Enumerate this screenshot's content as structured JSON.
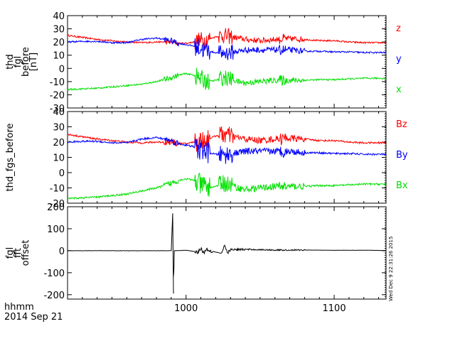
{
  "colors": {
    "z": "#ff0000",
    "y": "#0000ff",
    "x": "#00e000",
    "axis": "#000000"
  },
  "footer": {
    "xunit": "hhmm",
    "date": "2014 Sep 21"
  },
  "side_stamp": "Wed Dec  9 22:31:26 2015",
  "chart_data": [
    {
      "type": "line",
      "ylabel_lines": [
        "thd",
        "fgl",
        "before",
        "[nT]"
      ],
      "ylim": [
        -30,
        40
      ],
      "yticks": [
        -30,
        -20,
        -10,
        0,
        10,
        20,
        30,
        40
      ],
      "yticklabels": [
        "-30",
        "-20",
        "-10",
        "0",
        "10",
        "20",
        "30",
        "40"
      ],
      "xlim": [
        920,
        1135
      ],
      "series": [
        {
          "name": "z",
          "color": "#ff0000",
          "x": [
            920,
            930,
            940,
            950,
            960,
            970,
            980,
            990,
            995,
            1000,
            1005,
            1010,
            1015,
            1020,
            1025,
            1030,
            1035,
            1040,
            1050,
            1060,
            1070,
            1080,
            1090,
            1100,
            1110,
            1120,
            1135
          ],
          "y": [
            25,
            23.5,
            22,
            21,
            20,
            19.5,
            20,
            20,
            19,
            19,
            20,
            21,
            22,
            24,
            25,
            24,
            23,
            22,
            21,
            22,
            22.5,
            22,
            21,
            21,
            20,
            19.5,
            19.5
          ]
        },
        {
          "name": "y",
          "color": "#0000ff",
          "x": [
            920,
            930,
            940,
            950,
            960,
            970,
            980,
            990,
            995,
            1000,
            1005,
            1010,
            1015,
            1020,
            1025,
            1030,
            1035,
            1040,
            1050,
            1060,
            1070,
            1080,
            1090,
            1100,
            1110,
            1120,
            1135
          ],
          "y": [
            20,
            20.5,
            20.5,
            19.5,
            19.5,
            22,
            23,
            21,
            19,
            18,
            17,
            15,
            13,
            12,
            11.5,
            12,
            13,
            14,
            14,
            14,
            14,
            13,
            13,
            12.5,
            12.5,
            12,
            12
          ]
        },
        {
          "name": "x",
          "color": "#00e000",
          "x": [
            920,
            930,
            940,
            950,
            960,
            970,
            980,
            990,
            995,
            1000,
            1005,
            1010,
            1015,
            1020,
            1025,
            1030,
            1035,
            1040,
            1050,
            1060,
            1070,
            1080,
            1090,
            1100,
            1110,
            1120,
            1135
          ],
          "y": [
            -16,
            -15.5,
            -15,
            -14,
            -13,
            -12,
            -10,
            -7,
            -5,
            -4,
            -5,
            -8,
            -10,
            -9,
            -7,
            -8,
            -10,
            -11,
            -10,
            -9,
            -9,
            -9,
            -8.5,
            -8.5,
            -8,
            -7.5,
            -7.5
          ]
        }
      ]
    },
    {
      "type": "line",
      "ylabel_lines": [
        "thd_fgs_before"
      ],
      "ylim": [
        -20,
        40
      ],
      "yticks": [
        -20,
        -10,
        0,
        10,
        20,
        30,
        40
      ],
      "yticklabels": [
        "-20",
        "-10",
        "0",
        "10",
        "20",
        "30",
        "40"
      ],
      "xlim": [
        920,
        1135
      ],
      "series": [
        {
          "name": "Bz",
          "color": "#ff0000",
          "x": [
            920,
            930,
            940,
            950,
            960,
            970,
            980,
            990,
            995,
            1000,
            1005,
            1010,
            1015,
            1020,
            1025,
            1030,
            1035,
            1040,
            1050,
            1060,
            1070,
            1080,
            1090,
            1100,
            1110,
            1120,
            1135
          ],
          "y": [
            25,
            23.5,
            22,
            21,
            20,
            19.5,
            20,
            20,
            19,
            19,
            20,
            21,
            22,
            24,
            25,
            24,
            23,
            22,
            21,
            22,
            22.5,
            22,
            21,
            21,
            20,
            19.5,
            19.5
          ]
        },
        {
          "name": "By",
          "color": "#0000ff",
          "x": [
            920,
            930,
            940,
            950,
            960,
            970,
            980,
            990,
            995,
            1000,
            1005,
            1010,
            1015,
            1020,
            1025,
            1030,
            1035,
            1040,
            1050,
            1060,
            1070,
            1080,
            1090,
            1100,
            1110,
            1120,
            1135
          ],
          "y": [
            20,
            20.5,
            20.5,
            19.5,
            19.5,
            22,
            23,
            21,
            19,
            18,
            17,
            15,
            13,
            12,
            11.5,
            12,
            13,
            14,
            14,
            14,
            14,
            13,
            13,
            12.5,
            12.5,
            12,
            12
          ]
        },
        {
          "name": "Bx",
          "color": "#00e000",
          "x": [
            920,
            930,
            940,
            950,
            960,
            970,
            980,
            990,
            995,
            1000,
            1005,
            1010,
            1015,
            1020,
            1025,
            1030,
            1035,
            1040,
            1050,
            1060,
            1070,
            1080,
            1090,
            1100,
            1110,
            1120,
            1135
          ],
          "y": [
            -17,
            -16.5,
            -16,
            -15,
            -14,
            -12,
            -10,
            -7,
            -5,
            -4,
            -5,
            -8,
            -10,
            -9,
            -7,
            -8,
            -10,
            -11,
            -10,
            -9,
            -9,
            -9,
            -8.5,
            -8.5,
            -8,
            -7.5,
            -7.5
          ]
        }
      ]
    },
    {
      "type": "line",
      "ylabel_lines": [
        "fgl",
        "fft",
        "offset"
      ],
      "ylim": [
        -220,
        200
      ],
      "yticks": [
        -200,
        -100,
        0,
        100,
        200
      ],
      "yticklabels": [
        "-200",
        "-100",
        "0",
        "100",
        "200"
      ],
      "xlim": [
        920,
        1135
      ],
      "xticks": [
        1000,
        1100
      ],
      "xticklabels": [
        "1000",
        "1100"
      ],
      "series": [
        {
          "name": "",
          "color": "#000000",
          "x": [
            920,
            990,
            991,
            991.5,
            992,
            993,
            1000,
            1008,
            1010,
            1012,
            1014,
            1016,
            1024,
            1026,
            1028,
            1030,
            1040,
            1060,
            1080,
            1100,
            1120,
            1135
          ],
          "y": [
            0,
            0,
            170,
            -195,
            0,
            0,
            2,
            -6,
            12,
            -10,
            8,
            0,
            -12,
            22,
            -10,
            4,
            6,
            3,
            3,
            2,
            2,
            1
          ]
        }
      ]
    }
  ]
}
